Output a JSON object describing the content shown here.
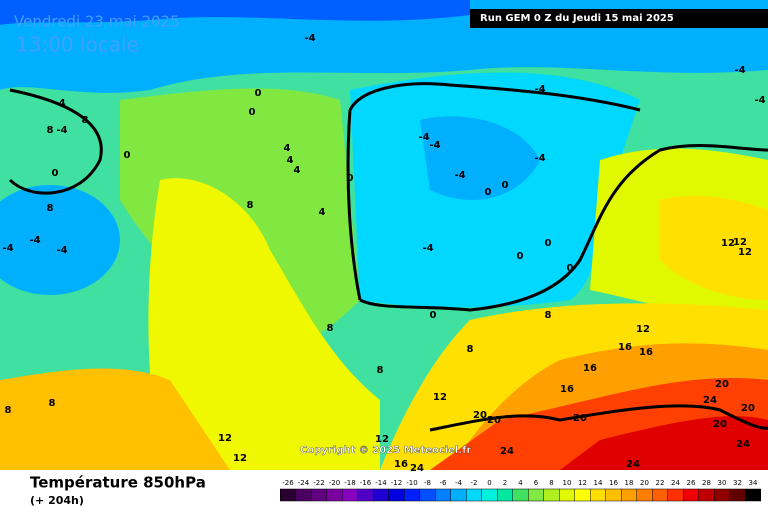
{
  "header": {
    "date": "Vendredi 23 mai 2025",
    "time": "13:00 locale",
    "run": "Run GEM 0 Z du Jeudi 15 mai 2025",
    "copyright": "Copyright © 2025 Meteociel.fr"
  },
  "footer": {
    "title": "Température 850hPa",
    "lead": "(+ 204h)"
  },
  "legend": {
    "ticks": [
      -26,
      -24,
      -22,
      -20,
      -18,
      -16,
      -14,
      -12,
      -10,
      -8,
      -6,
      -4,
      -2,
      0,
      2,
      4,
      6,
      8,
      10,
      12,
      14,
      16,
      18,
      20,
      22,
      24,
      26,
      28,
      30,
      32,
      34
    ],
    "colors": [
      "#2b0030",
      "#4a0060",
      "#600080",
      "#7a00a0",
      "#8800c0",
      "#5000c8",
      "#2000d0",
      "#0000e0",
      "#0020ff",
      "#0050ff",
      "#0080ff",
      "#00b0ff",
      "#00d8ff",
      "#00f0e0",
      "#00e8a0",
      "#40e060",
      "#80e840",
      "#b0f020",
      "#e0f800",
      "#ffff00",
      "#ffe000",
      "#ffc000",
      "#ffa000",
      "#ff8000",
      "#ff6000",
      "#ff3000",
      "#f00000",
      "#c00000",
      "#900000",
      "#600000",
      "#000000"
    ]
  },
  "map": {
    "labels": [
      -4,
      0,
      0,
      -4,
      -4,
      8,
      8,
      0,
      0,
      8,
      -4,
      -4,
      -4,
      8,
      4,
      4,
      4,
      4,
      0,
      -4,
      -4,
      -4,
      -4,
      0,
      0,
      -4,
      -4,
      0,
      0,
      0,
      0,
      8,
      8,
      8,
      8,
      12,
      20,
      20,
      20,
      16,
      16,
      16,
      16,
      12,
      12,
      12,
      12,
      -4,
      -4,
      20,
      20,
      24,
      20,
      24,
      24,
      24,
      24,
      16,
      12,
      12,
      12,
      8,
      8
    ]
  }
}
